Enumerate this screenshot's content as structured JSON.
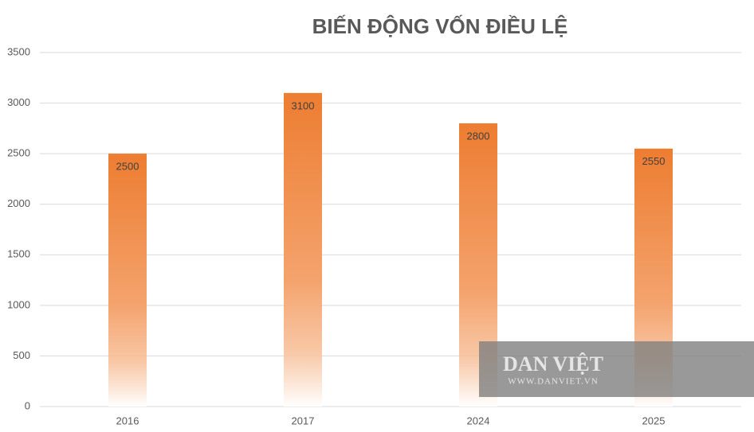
{
  "chart_data": {
    "type": "bar",
    "title": "BIẾN ĐỘNG VỐN ĐIỀU LỆ",
    "categories": [
      "2016",
      "2017",
      "2024",
      "2025"
    ],
    "values": [
      2500,
      3100,
      2800,
      2550
    ],
    "color": "#ed7d31",
    "ylim": [
      0,
      3500
    ],
    "yticks": [
      0,
      500,
      1000,
      1500,
      2000,
      2500,
      3000,
      3500
    ],
    "grid": true
  },
  "watermark": {
    "logo": "DAN VIỆT",
    "url": "WWW.DANVIET.VN"
  }
}
